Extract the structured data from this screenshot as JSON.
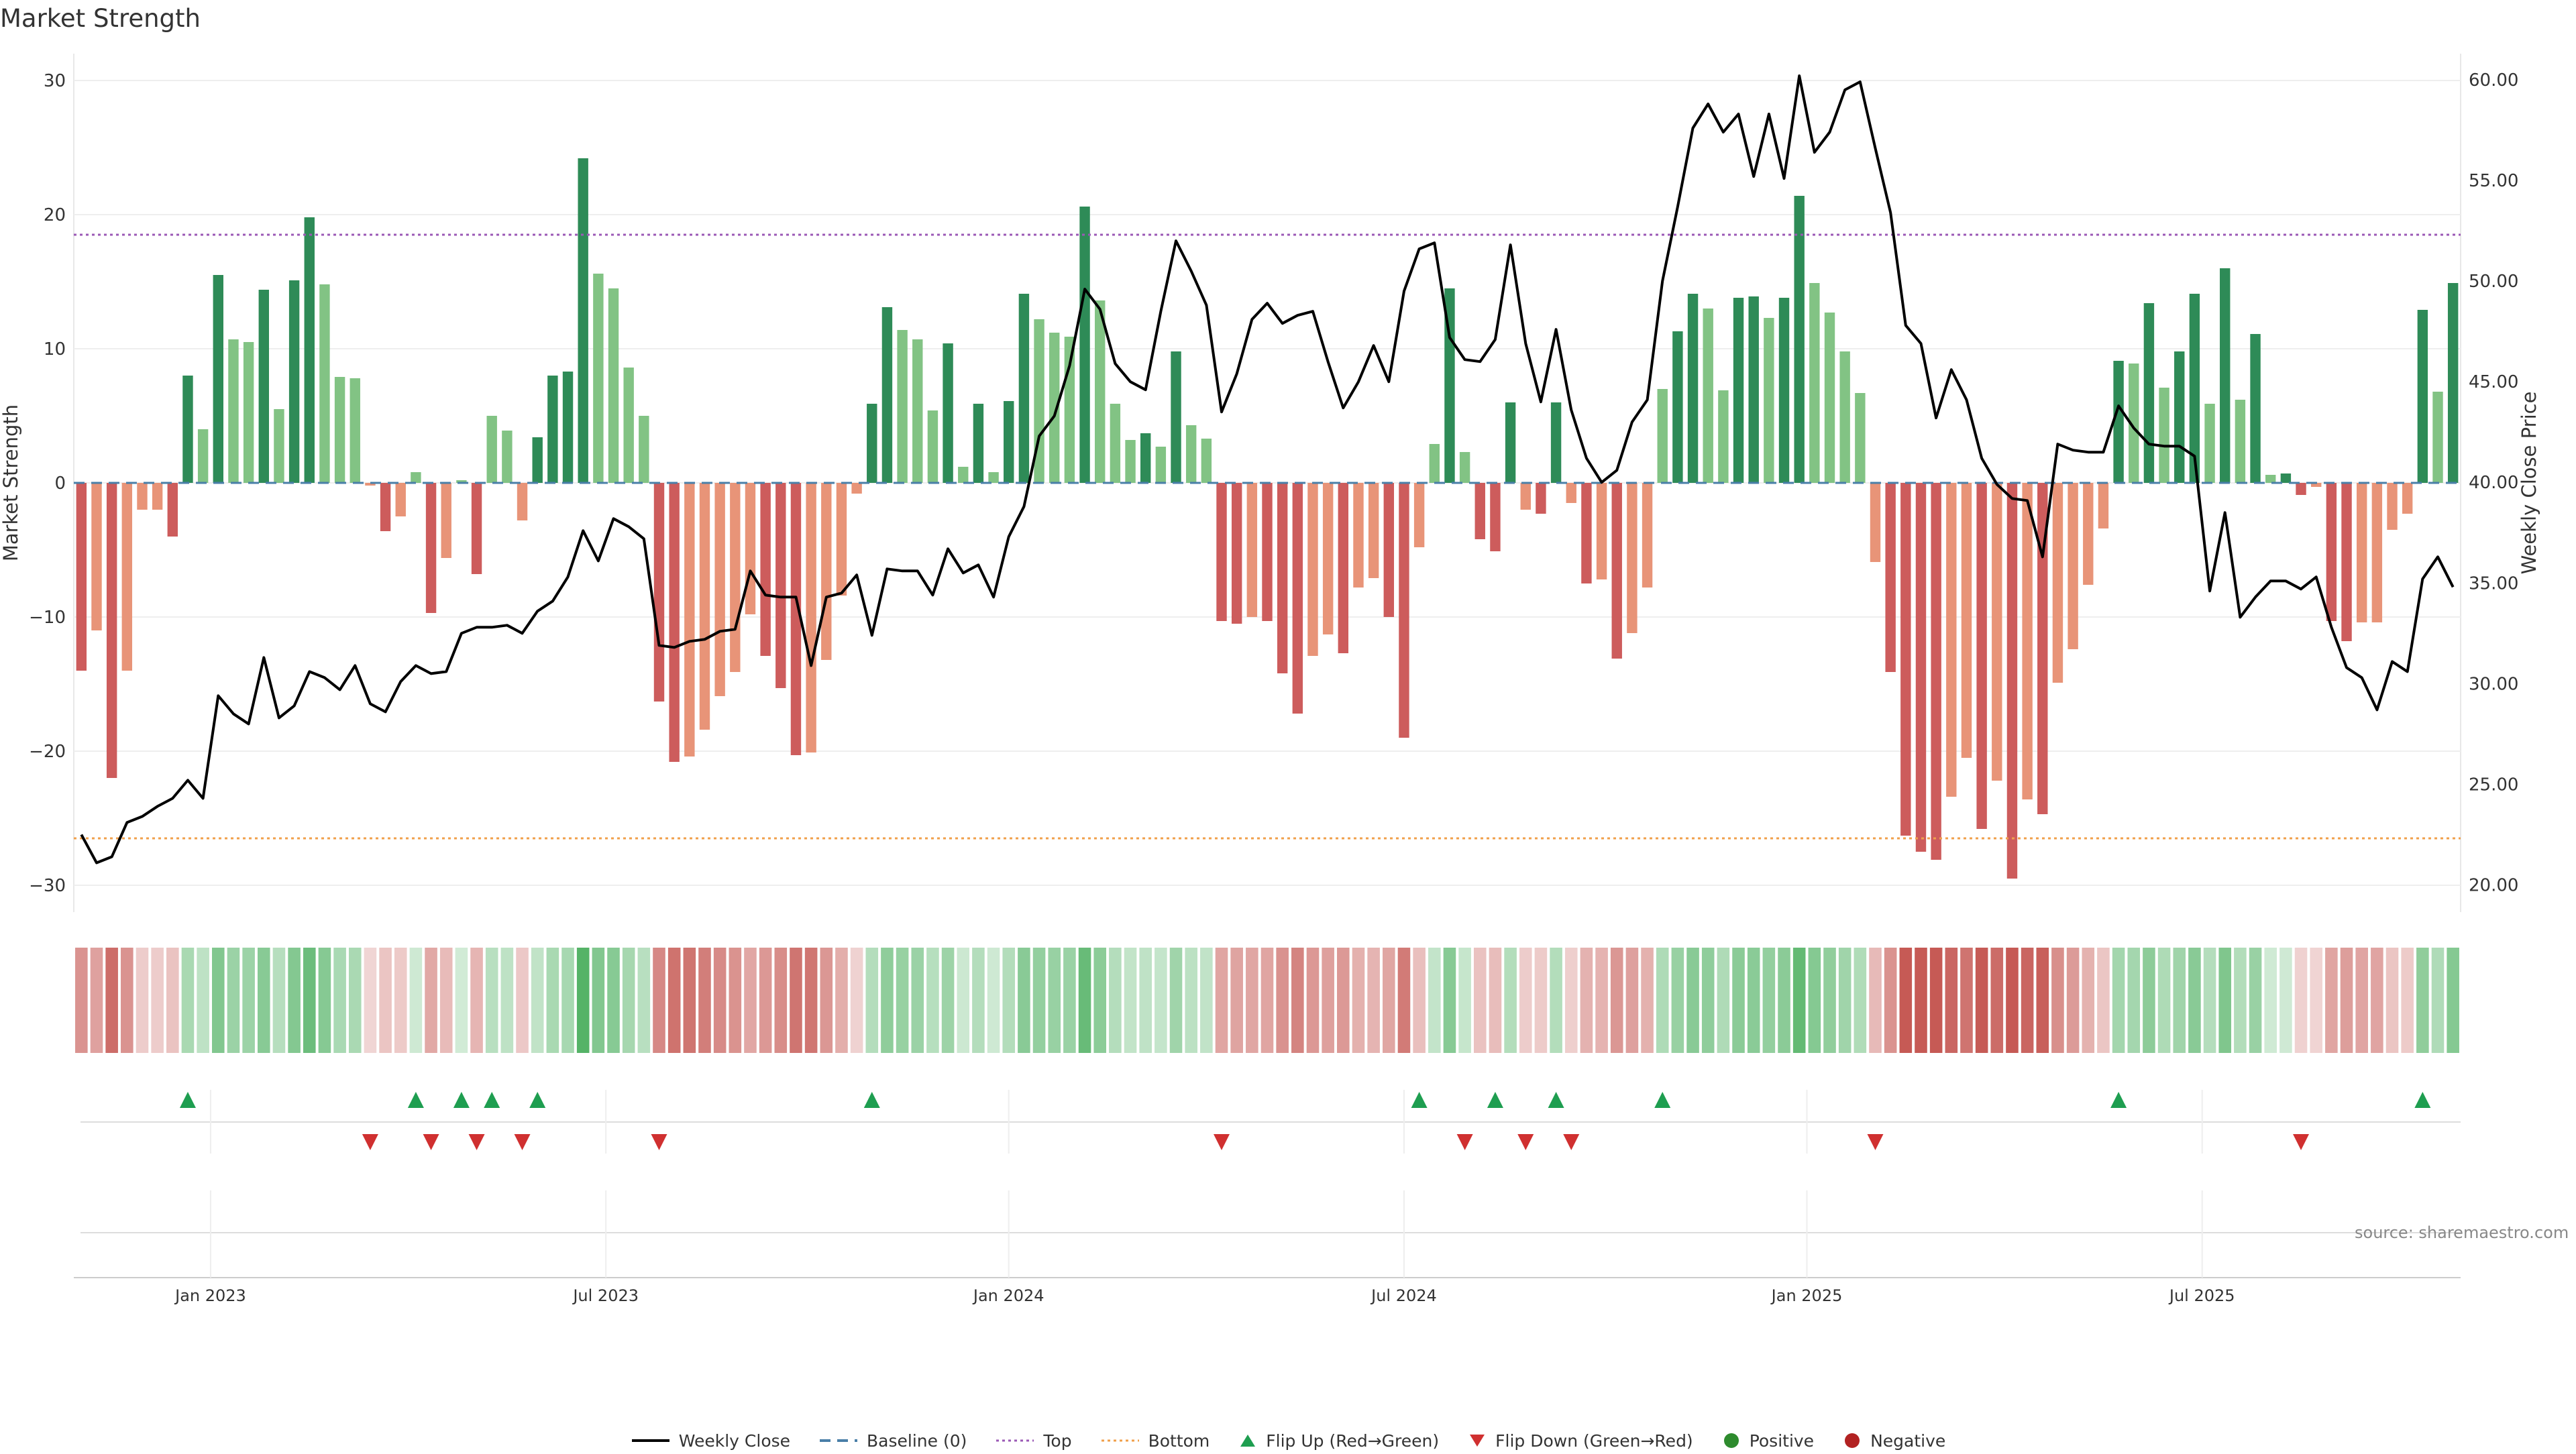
{
  "title": "Market Strength",
  "source": "source: sharemaestro.com",
  "colors": {
    "strong_green": "#2e8b57",
    "light_green": "#82c384",
    "strong_red": "#cd5c5c",
    "light_red": "#e89478",
    "close_line": "#000000",
    "baseline": "#4a7fa8",
    "top": "#9b59b6",
    "bottom": "#f0a04b",
    "flip_up": "#1e9e50",
    "flip_down": "#d03030",
    "positive": "#2e8b2e",
    "negative": "#b22222"
  },
  "legend": [
    {
      "label": "Weekly Close",
      "kind": "line",
      "color": "#000000"
    },
    {
      "label": "Baseline (0)",
      "kind": "dash",
      "color": "#4a7fa8"
    },
    {
      "label": "Top",
      "kind": "dot",
      "color": "#9b59b6"
    },
    {
      "label": "Bottom",
      "kind": "dot",
      "color": "#f0a04b"
    },
    {
      "label": "Flip Up (Red→Green)",
      "kind": "tri-up",
      "color": "#1e9e50"
    },
    {
      "label": "Flip Down (Green→Red)",
      "kind": "tri-down",
      "color": "#d03030"
    },
    {
      "label": "Positive",
      "kind": "circle",
      "color": "#2e8b2e"
    },
    {
      "label": "Negative",
      "kind": "circle",
      "color": "#b22222"
    }
  ],
  "chart_data": {
    "type": "bar",
    "title": "Market Strength",
    "ylabel": "Market Strength",
    "y2label": "Weekly Close Price",
    "ylim": [
      -32,
      32
    ],
    "y2lim": [
      18.65,
      61.3
    ],
    "yticks": [
      30,
      20,
      10,
      0,
      -10,
      -20,
      -30
    ],
    "y2ticks": [
      "60.00",
      "55.00",
      "50.00",
      "45.00",
      "40.00",
      "35.00",
      "30.00",
      "25.00",
      "20.00"
    ],
    "top_level": 18.5,
    "bottom_level": -26.5,
    "baseline": 0,
    "x_ticks": [
      {
        "label": "Jan 2023",
        "week": 8.5
      },
      {
        "label": "Jul 2023",
        "week": 34.5
      },
      {
        "label": "Jan 2024",
        "week": 61
      },
      {
        "label": "Jul 2024",
        "week": 87
      },
      {
        "label": "Jan 2025",
        "week": 113.5
      },
      {
        "label": "Jul 2025",
        "week": 139.5
      }
    ],
    "strength": [
      -14,
      -11,
      -22,
      -14,
      -2,
      -2,
      -4,
      8,
      4,
      15.5,
      10.7,
      10.5,
      14.4,
      5.5,
      15.1,
      19.8,
      14.8,
      7.9,
      7.8,
      -0.2,
      -3.6,
      -2.5,
      0.8,
      -9.7,
      -5.6,
      0.2,
      -6.8,
      5,
      3.9,
      -2.8,
      3.4,
      8,
      8.3,
      24.2,
      15.6,
      14.5,
      8.6,
      5,
      -16.3,
      -20.8,
      -20.4,
      -18.4,
      -15.9,
      -14.1,
      -9.8,
      -12.9,
      -15.3,
      -20.3,
      -20.1,
      -13.2,
      -8.4,
      -0.8,
      5.9,
      13.1,
      11.4,
      10.7,
      5.4,
      10.4,
      1.2,
      5.9,
      0.8,
      6.1,
      14.1,
      12.2,
      11.2,
      10.9,
      20.6,
      13.6,
      5.9,
      3.2,
      3.7,
      2.7,
      9.8,
      4.3,
      3.3,
      -10.3,
      -10.5,
      -10,
      -10.3,
      -14.2,
      -17.2,
      -12.9,
      -11.3,
      -12.7,
      -7.8,
      -7.1,
      -10,
      -19,
      -4.8,
      2.9,
      14.5,
      2.3,
      -4.2,
      -5.1,
      6,
      -2,
      -2.3,
      6,
      -1.5,
      -7.5,
      -7.2,
      -13.1,
      -11.2,
      -7.8,
      7,
      11.3,
      14.1,
      13,
      6.9,
      13.8,
      13.9,
      12.3,
      13.8,
      21.4,
      14.9,
      12.7,
      9.8,
      6.7,
      -5.9,
      -14.1,
      -26.3,
      -27.5,
      -28.1,
      -23.4,
      -20.5,
      -25.8,
      -22.2,
      -29.5,
      -23.6,
      -24.7,
      -14.9,
      -12.4,
      -7.6,
      -3.4,
      9.1,
      8.9,
      13.4,
      7.1,
      9.8,
      14.1,
      5.9,
      16,
      6.2,
      11.1,
      0.6,
      0.7,
      -0.9,
      -0.3,
      -10.3,
      -11.8,
      -10.4,
      -10.4,
      -3.5,
      -2.3,
      12.9,
      6.8,
      14.9
    ],
    "weekly_close": [
      22.5,
      21.1,
      21.4,
      23.1,
      23.4,
      23.9,
      24.3,
      25.2,
      24.3,
      29.4,
      28.5,
      28,
      31.3,
      28.3,
      28.9,
      30.6,
      30.3,
      29.7,
      30.9,
      29,
      28.6,
      30.1,
      30.9,
      30.5,
      30.6,
      32.5,
      32.8,
      32.8,
      32.9,
      32.5,
      33.6,
      34.1,
      35.3,
      37.6,
      36.1,
      38.2,
      37.8,
      37.2,
      31.9,
      31.8,
      32.1,
      32.2,
      32.6,
      32.7,
      35.6,
      34.4,
      34.3,
      34.3,
      30.9,
      34.3,
      34.5,
      35.4,
      32.4,
      35.7,
      35.6,
      35.6,
      34.4,
      36.7,
      35.5,
      35.9,
      34.3,
      37.3,
      38.8,
      42.3,
      43.3,
      45.8,
      49.6,
      48.6,
      45.9,
      45,
      44.6,
      48.5,
      52,
      50.5,
      48.8,
      43.5,
      45.4,
      48.1,
      48.9,
      47.9,
      48.3,
      48.5,
      46,
      43.7,
      45,
      46.8,
      45,
      49.5,
      51.6,
      51.9,
      47.2,
      46.1,
      46,
      47.1,
      51.8,
      46.9,
      44,
      47.6,
      43.6,
      41.2,
      40,
      40.6,
      43,
      44.1,
      50,
      53.7,
      57.6,
      58.8,
      57.4,
      58.3,
      55.2,
      58.3,
      55.1,
      60.2,
      56.4,
      57.4,
      59.5,
      59.9,
      56.6,
      53.4,
      47.8,
      46.9,
      43.2,
      45.6,
      44.1,
      41.2,
      39.9,
      39.2,
      39.1,
      36.3,
      41.9,
      41.6,
      41.5,
      41.5,
      43.8,
      42.7,
      41.9,
      41.8,
      41.8,
      41.3,
      34.6,
      38.5,
      33.3,
      34.3,
      35.1,
      35.1,
      34.7,
      35.3,
      32.8,
      30.8,
      30.3,
      28.7,
      31.1,
      30.6,
      35.2,
      36.3,
      34.8
    ],
    "flip_up_weeks": [
      7,
      22,
      25,
      27,
      30,
      52,
      88,
      93,
      97,
      104,
      134,
      154
    ],
    "flip_down_weeks": [
      19,
      23,
      26,
      29,
      38,
      75,
      91,
      95,
      98,
      118,
      146
    ]
  }
}
